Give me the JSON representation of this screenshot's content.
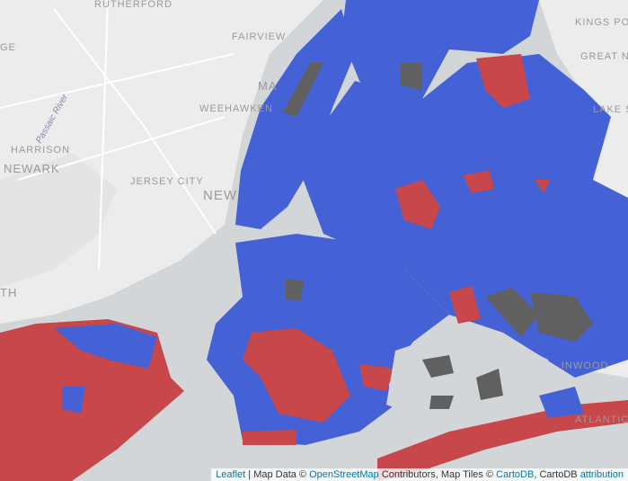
{
  "map_labels": [
    "RUTHERFORD",
    "FAIRVIEW",
    "WEEHAWKEN",
    "HARRISON",
    "NEWARK",
    "JERSEY CITY",
    "NEW",
    "Passaic River",
    "KINGS POIN",
    "GREAT NE",
    "LAKE SU",
    "INWOOD",
    "ATLANTIC B",
    "GE",
    "TH",
    "MA"
  ],
  "attribution": [
    "Leaflet",
    " | Map Data © ",
    "OpenStreetMap",
    " Contributors, Map Tiles © ",
    "CartoDB",
    ", CartoDB ",
    "attribution"
  ]
}
